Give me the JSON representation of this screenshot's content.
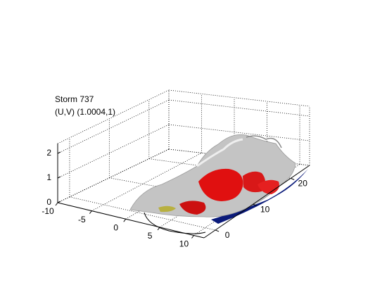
{
  "chart_data": {
    "type": "isosurface3d",
    "title": "Storm 737",
    "subtitle": "(U,V) (1.0004,1)",
    "xlim": [
      -10,
      11.5
    ],
    "xticks": [
      -10,
      -5,
      0,
      5,
      10
    ],
    "ylim": [
      -3,
      25
    ],
    "yticks": [
      0,
      10,
      20
    ],
    "zlim": [
      0,
      2.4
    ],
    "zticks": [
      0,
      1,
      2
    ],
    "grid": true
  }
}
